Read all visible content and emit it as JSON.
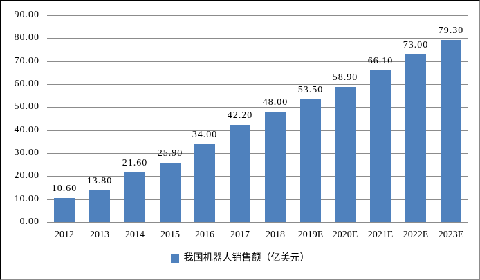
{
  "chart_data": {
    "type": "bar",
    "title": "",
    "categories": [
      "2012",
      "2013",
      "2014",
      "2015",
      "2016",
      "2017",
      "2018",
      "2019E",
      "2020E",
      "2021E",
      "2022E",
      "2023E"
    ],
    "values": [
      10.6,
      13.8,
      21.6,
      25.9,
      34.0,
      42.2,
      48.0,
      53.5,
      58.9,
      66.1,
      73.0,
      79.3
    ],
    "value_labels": [
      "10.60",
      "13.80",
      "21.60",
      "25.90",
      "34.00",
      "42.20",
      "48.00",
      "53.50",
      "58.90",
      "66.10",
      "73.00",
      "79.30"
    ],
    "ylim": [
      0,
      90
    ],
    "ytick_step": 10,
    "ytick_labels": [
      "0.00",
      "10.00",
      "20.00",
      "30.00",
      "40.00",
      "50.00",
      "60.00",
      "70.00",
      "80.00",
      "90.00"
    ],
    "xlabel": "",
    "ylabel": "",
    "grid": true,
    "legend": "我国机器人销售额（亿美元）",
    "legend_position": "bottom",
    "bar_color": "#4f81bd",
    "gridline_color": "#8c8c8c",
    "text_color": "#000000",
    "background_color": "#ffffff"
  }
}
